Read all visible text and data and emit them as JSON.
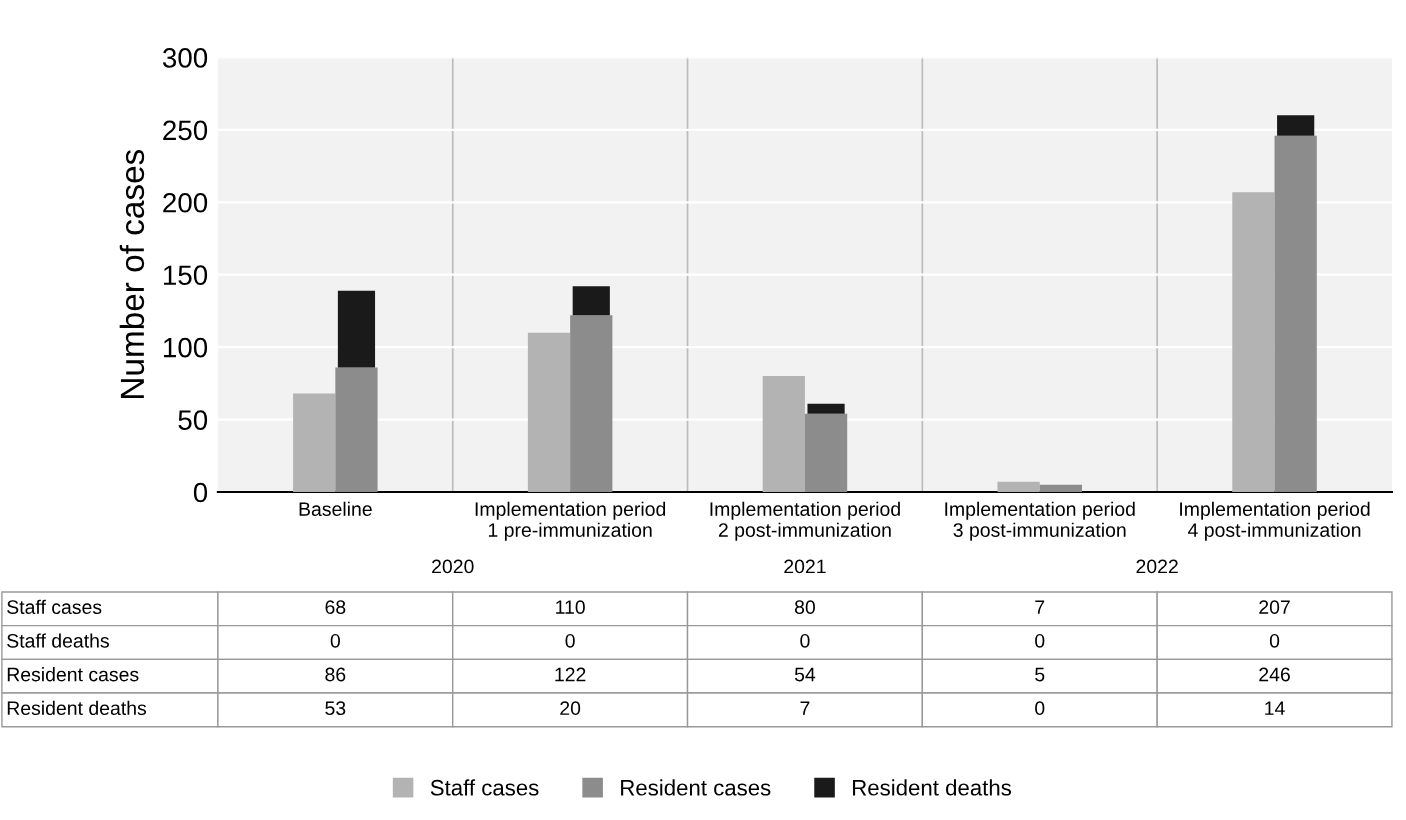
{
  "chart_data": {
    "type": "bar",
    "ylabel": "Number of cases",
    "categories": [
      "Baseline",
      "Implementation period\n1 pre-immunization",
      "Implementation period\n2 post-immunization",
      "Implementation period\n3 post-immunization",
      "Implementation period\n4 post-immunization"
    ],
    "series": [
      {
        "name": "Staff cases",
        "color": "#b3b3b3",
        "values": [
          68,
          110,
          80,
          7,
          207
        ]
      },
      {
        "name": "Staff deaths",
        "values": [
          0,
          0,
          0,
          0,
          0
        ],
        "base": [
          null,
          null,
          null,
          null,
          null
        ]
      },
      {
        "name": "Resident cases",
        "color": "#8c8c8c",
        "values": [
          86,
          122,
          54,
          5,
          246
        ]
      },
      {
        "name": "Resident deaths",
        "color": "#1a1a1a",
        "values": [
          53,
          20,
          7,
          0,
          14
        ],
        "base": [
          86,
          122,
          54,
          null,
          246
        ]
      }
    ],
    "ylim": [
      0,
      300
    ],
    "yticks": [
      0,
      50,
      100,
      150,
      200,
      250,
      300
    ],
    "grid": "y",
    "legend": "bottom",
    "data_labels": true,
    "annotations": [
      "2020",
      "2021",
      "2022"
    ]
  }
}
